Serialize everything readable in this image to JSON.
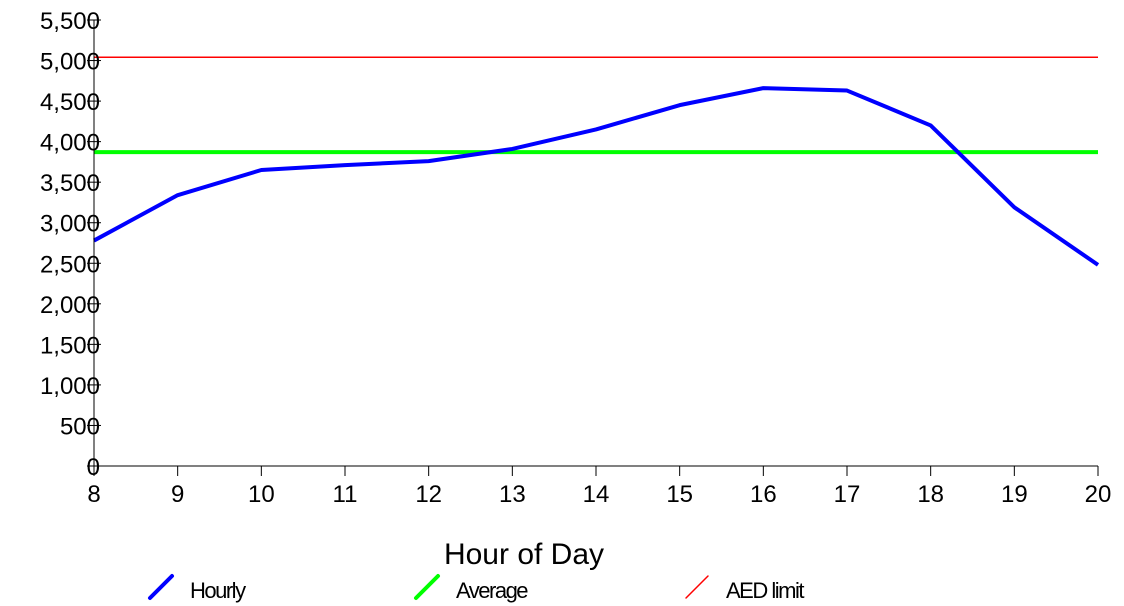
{
  "chart_data": {
    "type": "line",
    "title": "",
    "xlabel": "Hour of Day",
    "ylabel": "",
    "x": [
      8,
      9,
      10,
      11,
      12,
      13,
      14,
      15,
      16,
      17,
      18,
      19,
      20
    ],
    "xlim": [
      8,
      20
    ],
    "ylim": [
      0,
      5500
    ],
    "yticks": [
      0,
      500,
      1000,
      1500,
      2000,
      2500,
      3000,
      3500,
      4000,
      4500,
      5000,
      5500
    ],
    "ytick_labels": [
      "0",
      "500",
      "1,000",
      "1,500",
      "2,000",
      "2,500",
      "3,000",
      "3,500",
      "4,000",
      "4,500",
      "5,000",
      "5,500"
    ],
    "xtick_labels": [
      "8",
      "9",
      "10",
      "11",
      "12",
      "13",
      "14",
      "15",
      "16",
      "17",
      "18",
      "19",
      "20"
    ],
    "grid": false,
    "legend_position": "bottom",
    "series": [
      {
        "name": "Hourly",
        "color": "#0000ff",
        "values": [
          2780,
          3340,
          3650,
          3710,
          3760,
          3910,
          4150,
          4450,
          4660,
          4630,
          4200,
          3190,
          2480
        ]
      },
      {
        "name": "Average",
        "color": "#00ff00",
        "values": [
          3870,
          3870,
          3870,
          3870,
          3870,
          3870,
          3870,
          3870,
          3870,
          3870,
          3870,
          3870,
          3870
        ]
      },
      {
        "name": "AED limit",
        "color": "#ff0000",
        "values": [
          5040,
          5040,
          5040,
          5040,
          5040,
          5040,
          5040,
          5040,
          5040,
          5040,
          5040,
          5040,
          5040
        ]
      }
    ]
  }
}
